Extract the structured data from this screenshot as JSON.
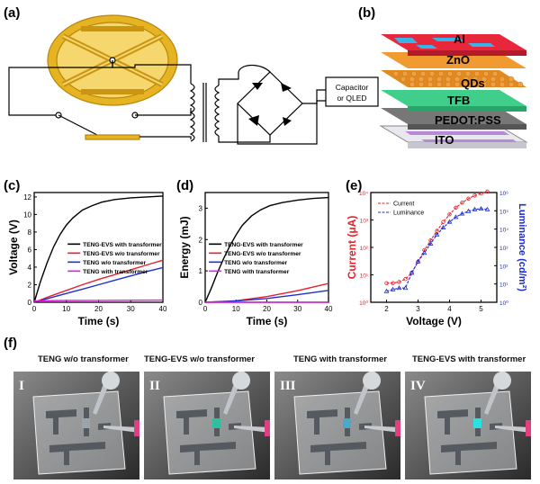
{
  "panels": {
    "a": "(a)",
    "b": "(b)",
    "c": "(c)",
    "d": "(d)",
    "e": "(e)",
    "f": "(f)"
  },
  "panel_a": {
    "load_label_line1": "Capacitor",
    "load_label_line2": "or QLED"
  },
  "panel_b": {
    "layers": [
      "Al",
      "ZnO",
      "QDs",
      "TFB",
      "PEDOT:PSS",
      "ITO"
    ]
  },
  "colors": {
    "black": "#000000",
    "red": "#e8202a",
    "blue": "#1f2fd6",
    "magenta": "#e020e0",
    "gold": "#e6b422",
    "lum_blue": "#1c2cd0"
  },
  "chart_data": [
    {
      "type": "line",
      "panel": "c",
      "xlabel": "Time (s)",
      "ylabel": "Voltage (V)",
      "xlim": [
        0,
        40
      ],
      "ylim": [
        0,
        12.5
      ],
      "xticks": [
        0,
        10,
        20,
        30,
        40
      ],
      "yticks": [
        0,
        2,
        4,
        6,
        8,
        10,
        12
      ],
      "series": [
        {
          "name": "TENG-EVS with transformer",
          "color": "black",
          "x": [
            0,
            2,
            4,
            6,
            8,
            10,
            12,
            15,
            18,
            21,
            25,
            30,
            35,
            40
          ],
          "y": [
            0,
            2.4,
            4.5,
            6.3,
            7.7,
            8.8,
            9.6,
            10.5,
            11.0,
            11.4,
            11.7,
            11.9,
            12.0,
            12.1
          ]
        },
        {
          "name": "TENG-EVS w/o transformer",
          "color": "red",
          "x": [
            0,
            5,
            10,
            15,
            20,
            25,
            30,
            35,
            40
          ],
          "y": [
            0,
            0.7,
            1.35,
            2.0,
            2.6,
            3.15,
            3.7,
            4.25,
            4.8
          ]
        },
        {
          "name": "TENG w/o transformer",
          "color": "blue",
          "x": [
            0,
            5,
            10,
            15,
            20,
            25,
            30,
            35,
            40
          ],
          "y": [
            0,
            0.5,
            1.0,
            1.5,
            2.0,
            2.5,
            3.0,
            3.5,
            3.95
          ]
        },
        {
          "name": "TENG with transformer",
          "color": "magenta",
          "x": [
            0,
            10,
            20,
            30,
            40
          ],
          "y": [
            0.15,
            0.2,
            0.22,
            0.24,
            0.25
          ]
        }
      ]
    },
    {
      "type": "line",
      "panel": "d",
      "xlabel": "Time (s)",
      "ylabel": "Energy (mJ)",
      "xlim": [
        0,
        40
      ],
      "ylim": [
        0,
        3.5
      ],
      "xticks": [
        0,
        10,
        20,
        30,
        40
      ],
      "yticks": [
        0,
        1,
        2,
        3
      ],
      "series": [
        {
          "name": "TENG-EVS with transformer",
          "color": "black",
          "x": [
            0,
            2,
            4,
            6,
            8,
            10,
            12,
            15,
            18,
            21,
            25,
            30,
            35,
            40
          ],
          "y": [
            0,
            0.45,
            0.95,
            1.4,
            1.8,
            2.15,
            2.45,
            2.75,
            2.95,
            3.08,
            3.18,
            3.26,
            3.31,
            3.34
          ]
        },
        {
          "name": "TENG-EVS w/o transformer",
          "color": "red",
          "x": [
            0,
            10,
            20,
            30,
            40
          ],
          "y": [
            0,
            0.05,
            0.18,
            0.37,
            0.6
          ]
        },
        {
          "name": "TENG w/o transformer",
          "color": "blue",
          "x": [
            0,
            10,
            20,
            30,
            40
          ],
          "y": [
            0,
            0.04,
            0.12,
            0.24,
            0.38
          ]
        },
        {
          "name": "TENG with transformer",
          "color": "magenta",
          "x": [
            0,
            10,
            20,
            30,
            40
          ],
          "y": [
            0,
            0,
            0,
            0,
            0
          ]
        }
      ]
    },
    {
      "type": "line",
      "panel": "e",
      "xlabel": "Voltage (V)",
      "ylabel": "Current (μA)",
      "ylabel_right": "Luminance (cd/m²)",
      "xlim": [
        1.5,
        5.5
      ],
      "xticks": [
        2,
        3,
        4,
        5
      ],
      "ylim_log_left": [
        0,
        4
      ],
      "ylim_log_right": [
        0,
        6
      ],
      "yticks_left": [
        "10⁰",
        "10¹",
        "10²",
        "10³",
        "10⁴"
      ],
      "yticks_right": [
        "10⁰",
        "10¹",
        "10²",
        "10³",
        "10⁴",
        "10⁵",
        "10⁶"
      ],
      "series": [
        {
          "name": "Current",
          "color": "red",
          "axis": "left",
          "x": [
            2.0,
            2.2,
            2.4,
            2.6,
            2.8,
            3.0,
            3.2,
            3.4,
            3.6,
            3.8,
            4.0,
            4.2,
            4.4,
            4.6,
            4.8,
            5.0,
            5.2
          ],
          "y": [
            5,
            5,
            5.5,
            7,
            12,
            30,
            80,
            180,
            400,
            850,
            1600,
            2800,
            4300,
            6000,
            7800,
            9200,
            10800
          ]
        },
        {
          "name": "Luminance",
          "color": "lum_blue",
          "axis": "right",
          "x": [
            2.0,
            2.2,
            2.4,
            2.6,
            2.8,
            3.0,
            3.2,
            3.4,
            3.6,
            3.8,
            4.0,
            4.2,
            4.4,
            4.6,
            4.8,
            5.0,
            5.2
          ],
          "y": [
            4,
            5,
            6,
            6,
            40,
            170,
            500,
            1600,
            5000,
            12000,
            25000,
            45000,
            70000,
            95000,
            120000,
            130000,
            120000
          ]
        }
      ]
    }
  ],
  "panel_f": {
    "photos": [
      {
        "title": "TENG w/o transformer",
        "roman": "I",
        "glow": false
      },
      {
        "title": "TENG-EVS w/o transformer",
        "roman": "II",
        "glow": true,
        "glow_color": "#2fbfa0"
      },
      {
        "title": "TENG with transformer",
        "roman": "III",
        "glow": true,
        "glow_color": "#4aa9c8"
      },
      {
        "title": "TENG-EVS with transformer",
        "roman": "IV",
        "glow": true,
        "glow_color": "#2ae0e0"
      }
    ]
  }
}
